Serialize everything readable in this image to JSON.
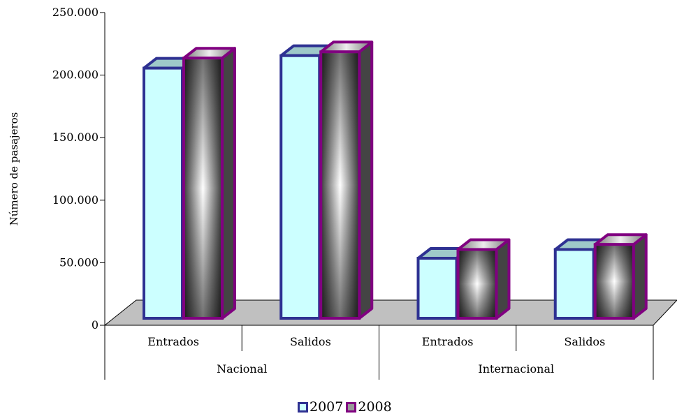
{
  "chart_data": {
    "type": "bar",
    "ylabel": "Número de pasajeros",
    "ylim": [
      0,
      250000
    ],
    "y_ticks": [
      0,
      50000,
      100000,
      150000,
      200000,
      250000
    ],
    "y_tick_labels": [
      "0",
      "50.000",
      "100.000",
      "150.000",
      "200.000",
      "250.000"
    ],
    "categories": [
      "Entrados",
      "Salidos",
      "Entrados",
      "Salidos"
    ],
    "groups": [
      {
        "label": "Nacional",
        "categories": [
          "Entrados",
          "Salidos"
        ]
      },
      {
        "label": "Internacional",
        "categories": [
          "Entrados",
          "Salidos"
        ]
      }
    ],
    "series": [
      {
        "name": "2007",
        "values": [
          200000,
          210000,
          48000,
          55000
        ],
        "color": "#2e3192",
        "fill": "#ccffff"
      },
      {
        "name": "2008",
        "values": [
          208000,
          213000,
          55000,
          59000
        ],
        "color": "#800080",
        "fill": "gradient-gray"
      }
    ],
    "grid": false,
    "legend": "bottom",
    "floor_color": "#c0c0c0"
  }
}
